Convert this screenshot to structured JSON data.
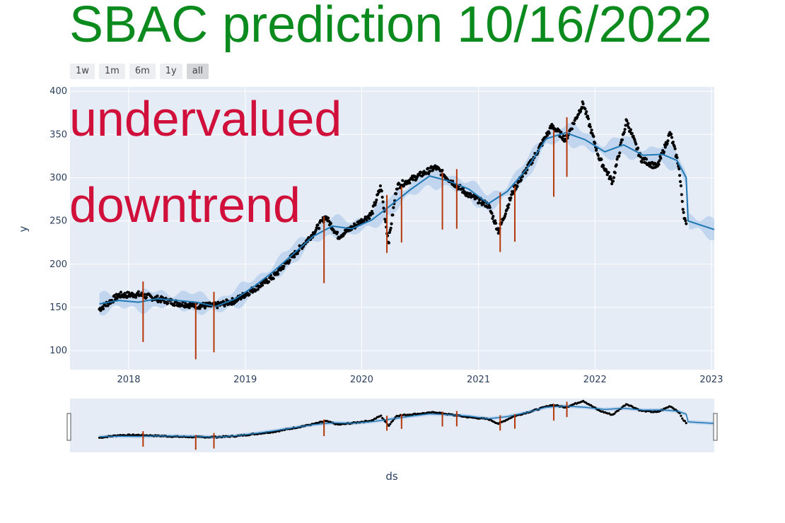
{
  "title": "SBAC prediction 10/16/2022",
  "range_buttons": [
    {
      "label": "1w",
      "active": false
    },
    {
      "label": "1m",
      "active": false
    },
    {
      "label": "6m",
      "active": false
    },
    {
      "label": "1y",
      "active": false
    },
    {
      "label": "all",
      "active": true
    }
  ],
  "annotations": [
    "undervalued",
    "downtrend"
  ],
  "colors": {
    "title": "#0b8a1e",
    "annotation": "#d0103a",
    "plot_bg": "#e5ecf6",
    "forecast_line": "#1f77b4",
    "band": "#a9c8ea",
    "actual_points": "#000000",
    "changepoint": "#b5380a"
  },
  "chart_data": {
    "type": "scatter",
    "xlabel": "ds",
    "ylabel": "y",
    "x_ticks": [
      "2018",
      "2019",
      "2020",
      "2021",
      "2022",
      "2023"
    ],
    "y_ticks": [
      100,
      150,
      200,
      250,
      300,
      350,
      400
    ],
    "xlim": [
      "2017-07-01",
      "2023-01-10"
    ],
    "ylim": [
      78,
      405
    ],
    "grid": true,
    "legend": "none",
    "forecast": [
      [
        "2017-10-01",
        154
      ],
      [
        "2017-12-01",
        158
      ],
      [
        "2018-02-01",
        156
      ],
      [
        "2018-04-01",
        160
      ],
      [
        "2018-06-01",
        158
      ],
      [
        "2018-08-01",
        156
      ],
      [
        "2018-10-01",
        151
      ],
      [
        "2018-12-01",
        160
      ],
      [
        "2019-02-01",
        175
      ],
      [
        "2019-04-01",
        192
      ],
      [
        "2019-06-01",
        212
      ],
      [
        "2019-08-01",
        232
      ],
      [
        "2019-10-01",
        244
      ],
      [
        "2019-12-01",
        241
      ],
      [
        "2020-02-01",
        251
      ],
      [
        "2020-04-01",
        268
      ],
      [
        "2020-06-01",
        286
      ],
      [
        "2020-08-01",
        302
      ],
      [
        "2020-10-01",
        296
      ],
      [
        "2020-12-01",
        287
      ],
      [
        "2021-02-01",
        270
      ],
      [
        "2021-04-01",
        284
      ],
      [
        "2021-06-01",
        310
      ],
      [
        "2021-08-01",
        345
      ],
      [
        "2021-10-01",
        352
      ],
      [
        "2021-12-01",
        344
      ],
      [
        "2022-02-01",
        330
      ],
      [
        "2022-04-01",
        338
      ],
      [
        "2022-06-01",
        326
      ],
      [
        "2022-08-01",
        327
      ],
      [
        "2022-09-15",
        320
      ],
      [
        "2022-10-14",
        300
      ],
      [
        "2022-10-20",
        250
      ],
      [
        "2023-01-10",
        240
      ]
    ],
    "actual": [
      [
        "2017-10-01",
        148
      ],
      [
        "2017-12-01",
        164
      ],
      [
        "2018-02-01",
        165
      ],
      [
        "2018-04-01",
        160
      ],
      [
        "2018-06-01",
        155
      ],
      [
        "2018-08-01",
        152
      ],
      [
        "2018-10-01",
        152
      ],
      [
        "2018-12-01",
        158
      ],
      [
        "2019-02-01",
        172
      ],
      [
        "2019-04-01",
        186
      ],
      [
        "2019-06-01",
        210
      ],
      [
        "2019-08-01",
        235
      ],
      [
        "2019-09-10",
        255
      ],
      [
        "2019-10-20",
        232
      ],
      [
        "2019-12-01",
        242
      ],
      [
        "2020-02-01",
        258
      ],
      [
        "2020-03-01",
        290
      ],
      [
        "2020-03-25",
        225
      ],
      [
        "2020-04-20",
        290
      ],
      [
        "2020-06-15",
        300
      ],
      [
        "2020-08-20",
        312
      ],
      [
        "2020-10-01",
        298
      ],
      [
        "2020-12-01",
        280
      ],
      [
        "2021-02-01",
        268
      ],
      [
        "2021-03-05",
        238
      ],
      [
        "2021-04-20",
        285
      ],
      [
        "2021-06-15",
        318
      ],
      [
        "2021-08-20",
        360
      ],
      [
        "2021-10-01",
        344
      ],
      [
        "2021-11-25",
        386
      ],
      [
        "2022-01-15",
        322
      ],
      [
        "2022-02-25",
        295
      ],
      [
        "2022-04-10",
        366
      ],
      [
        "2022-05-25",
        322
      ],
      [
        "2022-07-15",
        312
      ],
      [
        "2022-08-25",
        352
      ],
      [
        "2022-09-20",
        315
      ],
      [
        "2022-10-05",
        262
      ],
      [
        "2022-10-14",
        244
      ]
    ],
    "changepoints": [
      {
        "date": "2018-02-15",
        "low": 110,
        "high": 180
      },
      {
        "date": "2018-07-30",
        "low": 90,
        "high": 155
      },
      {
        "date": "2018-09-25",
        "low": 98,
        "high": 168
      },
      {
        "date": "2019-09-05",
        "low": 178,
        "high": 255
      },
      {
        "date": "2020-03-20",
        "low": 213,
        "high": 280
      },
      {
        "date": "2020-05-05",
        "low": 225,
        "high": 290
      },
      {
        "date": "2020-09-10",
        "low": 240,
        "high": 306
      },
      {
        "date": "2020-10-25",
        "low": 241,
        "high": 310
      },
      {
        "date": "2021-03-10",
        "low": 214,
        "high": 283
      },
      {
        "date": "2021-04-25",
        "low": 226,
        "high": 290
      },
      {
        "date": "2021-08-25",
        "low": 278,
        "high": 355
      },
      {
        "date": "2021-10-05",
        "low": 301,
        "high": 370
      }
    ]
  }
}
